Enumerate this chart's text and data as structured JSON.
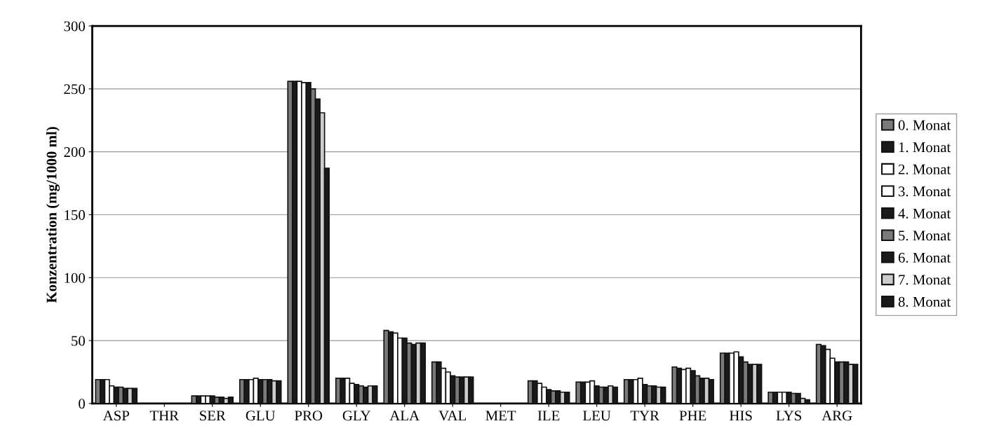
{
  "chart_data": {
    "type": "bar",
    "ylabel": "Konzentration (mg/1000 ml)",
    "categories": [
      "ASP",
      "THR",
      "SER",
      "GLU",
      "PRO",
      "GLY",
      "ALA",
      "VAL",
      "MET",
      "ILE",
      "LEU",
      "TYR",
      "PHE",
      "HIS",
      "LYS",
      "ARG"
    ],
    "series": [
      {
        "name": "0. Monat",
        "color": "#7a7a7a",
        "values": [
          19,
          null,
          6,
          19,
          256,
          20,
          58,
          33,
          null,
          18,
          17,
          19,
          29,
          40,
          9,
          47
        ]
      },
      {
        "name": "1. Monat",
        "color": "#1a1a1a",
        "values": [
          19,
          null,
          6,
          19,
          256,
          20,
          57,
          33,
          null,
          18,
          17,
          19,
          28,
          40,
          9,
          46
        ]
      },
      {
        "name": "2. Monat",
        "color": "#ffffff",
        "values": [
          19,
          null,
          6,
          19,
          256,
          20,
          56,
          28,
          null,
          16,
          17,
          19,
          27,
          40,
          9,
          43
        ]
      },
      {
        "name": "3. Monat",
        "color": "#ffffff",
        "values": [
          14,
          null,
          6,
          20,
          255,
          16,
          52,
          25,
          null,
          13,
          18,
          20,
          28,
          41,
          9,
          36
        ]
      },
      {
        "name": "4. Monat",
        "color": "#1a1a1a",
        "values": [
          13,
          null,
          6,
          19,
          255,
          15,
          52,
          22,
          null,
          11,
          14,
          15,
          26,
          37,
          9,
          33
        ]
      },
      {
        "name": "5. Monat",
        "color": "#7a7a7a",
        "values": [
          13,
          null,
          5,
          19,
          250,
          14,
          48,
          21,
          null,
          10,
          13,
          14,
          22,
          33,
          8,
          33
        ]
      },
      {
        "name": "6. Monat",
        "color": "#1a1a1a",
        "values": [
          12,
          null,
          5,
          19,
          242,
          13,
          47,
          21,
          null,
          10,
          13,
          14,
          20,
          31,
          8,
          33
        ]
      },
      {
        "name": "7. Monat",
        "color": "#cccccc",
        "values": [
          12,
          null,
          4,
          18,
          231,
          14,
          48,
          21,
          null,
          9,
          14,
          13,
          20,
          31,
          4,
          31
        ]
      },
      {
        "name": "8. Monat",
        "color": "#1a1a1a",
        "values": [
          12,
          null,
          5,
          18,
          187,
          14,
          48,
          21,
          null,
          9,
          13,
          13,
          19,
          31,
          3,
          31
        ]
      }
    ],
    "ylim": [
      0,
      300
    ],
    "yticks": [
      0,
      50,
      100,
      150,
      200,
      250,
      300
    ],
    "grid": "y",
    "legend": "right"
  }
}
